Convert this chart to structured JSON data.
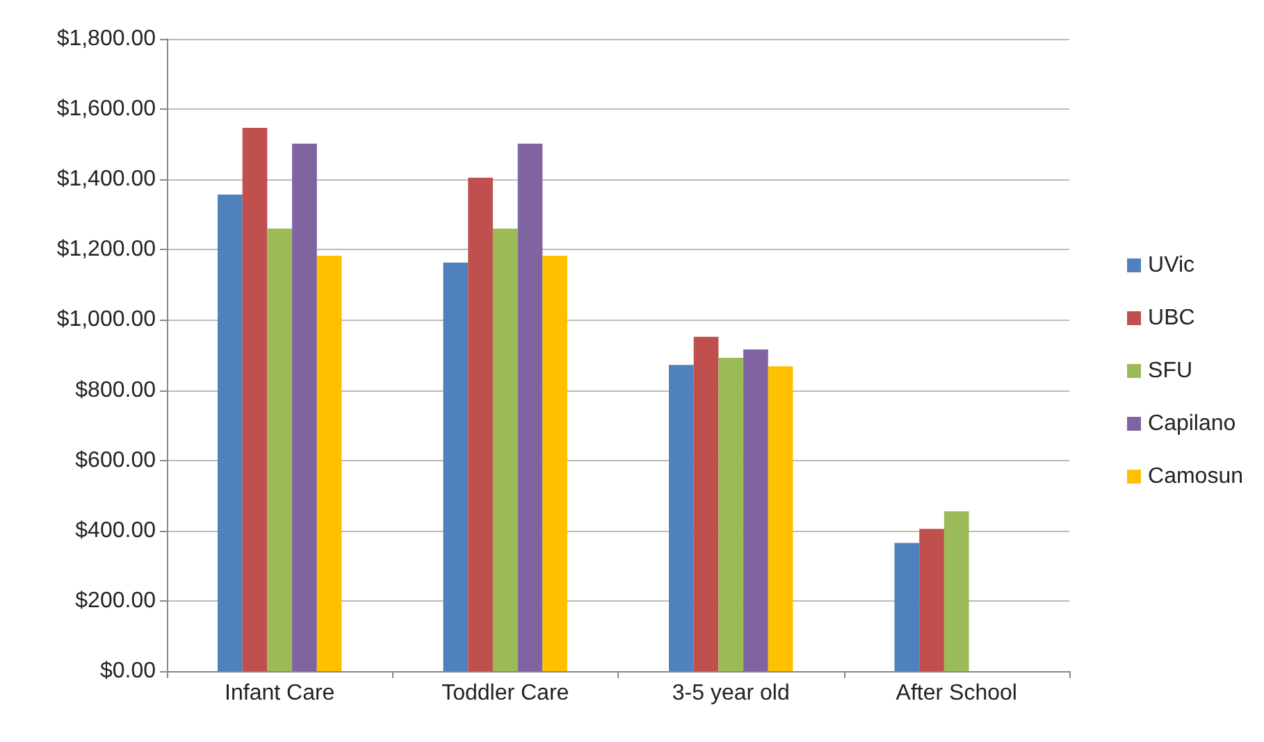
{
  "chart_data": {
    "type": "bar",
    "categories": [
      "Infant Care",
      "Toddler Care",
      "3-5 year old",
      "After School"
    ],
    "series": [
      {
        "name": "UVic",
        "color": "#4f81bd",
        "values": [
          1357,
          1163,
          872,
          365
        ]
      },
      {
        "name": "UBC",
        "color": "#c0504d",
        "values": [
          1547,
          1405,
          952,
          405
        ]
      },
      {
        "name": "SFU",
        "color": "#9bbb59",
        "values": [
          1260,
          1260,
          892,
          455
        ]
      },
      {
        "name": "Capilano",
        "color": "#8064a2",
        "values": [
          1502,
          1502,
          916,
          null
        ]
      },
      {
        "name": "Camosun",
        "color": "#ffc000",
        "values": [
          1183,
          1183,
          868,
          null
        ]
      }
    ],
    "ylim": [
      0,
      1800
    ],
    "yticks": [
      {
        "value": 0,
        "label": "$0.00"
      },
      {
        "value": 200,
        "label": "$200.00"
      },
      {
        "value": 400,
        "label": "$400.00"
      },
      {
        "value": 600,
        "label": "$600.00"
      },
      {
        "value": 800,
        "label": "$800.00"
      },
      {
        "value": 1000,
        "label": "$1,000.00"
      },
      {
        "value": 1200,
        "label": "$1,200.00"
      },
      {
        "value": 1400,
        "label": "$1,400.00"
      },
      {
        "value": 1600,
        "label": "$1,600.00"
      },
      {
        "value": 1800,
        "label": "$1,800.00"
      }
    ],
    "grid": "y",
    "legend": "right"
  }
}
